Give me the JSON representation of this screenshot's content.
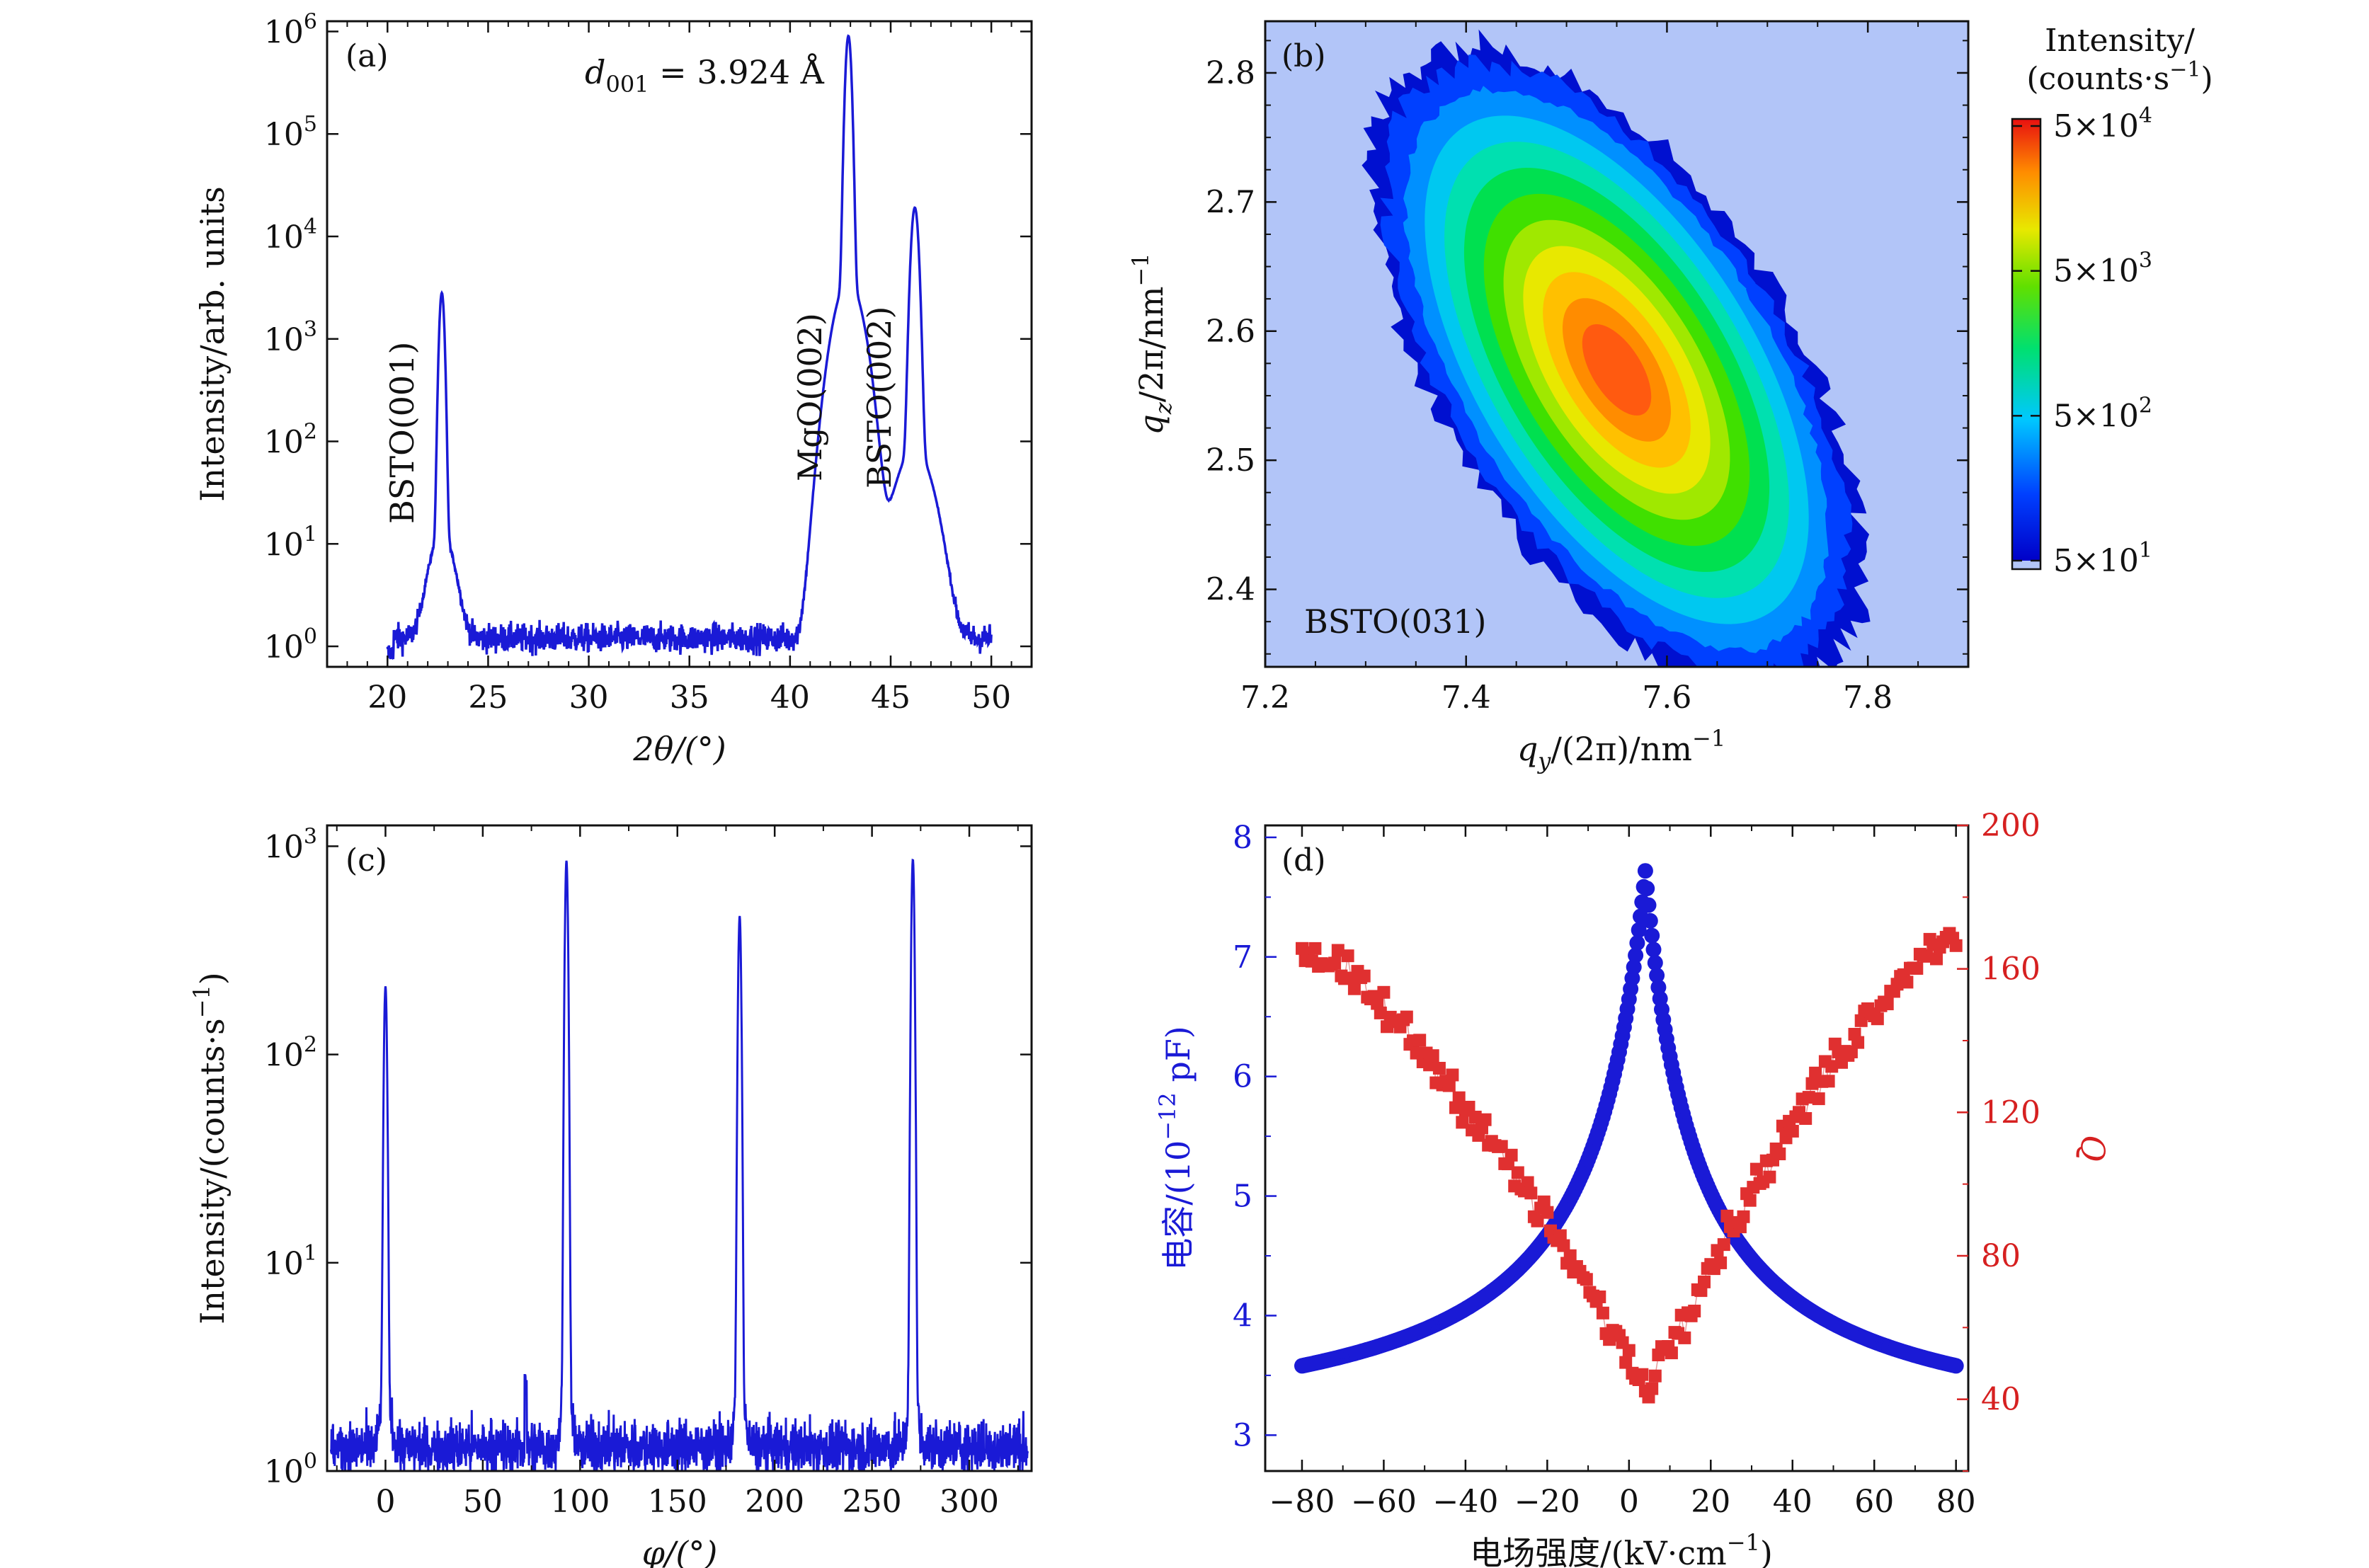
{
  "chart_data": [
    {
      "panel": "(a)",
      "type": "line",
      "xlabel": "2θ/(°)",
      "ylabel": "Intensity/arb. units",
      "xlim": [
        17,
        52
      ],
      "ylim_log10": [
        -0.2,
        6.1
      ],
      "yscale": "log",
      "x_ticks": [
        "20",
        "25",
        "30",
        "35",
        "40",
        "45",
        "50"
      ],
      "y_ticks": [
        "10^0",
        "10^1",
        "10^2",
        "10^3",
        "10^4",
        "10^5",
        "10^6"
      ],
      "color": "#1a1ad6",
      "baseline": 1.2,
      "range": [
        20,
        50
      ],
      "peaks": [
        {
          "x": 22.7,
          "y": 2800,
          "width": 0.14,
          "label": "BSTO(001)"
        },
        {
          "x": 42.9,
          "y": 900000,
          "width": 0.16,
          "label": "MgO(002)"
        },
        {
          "x": 43.9,
          "y": 25,
          "width": 0.2,
          "label": ""
        },
        {
          "x": 46.2,
          "y": 19000,
          "width": 0.2,
          "label": "BSTO(002)"
        }
      ],
      "annotation_main": "d",
      "annotation_sub": "001",
      "annotation_val": " = 3.924 Å",
      "grid": false
    },
    {
      "panel": "(b)",
      "type": "heatmap",
      "xlabel_main": "q",
      "xlabel_sub": "y",
      "xlabel_rest": "/(2π)/nm",
      "xlabel_sup": "−1",
      "ylabel_main": "q",
      "ylabel_sub": "z",
      "ylabel_rest": "/2π/nm",
      "ylabel_sup": "−1",
      "xlim": [
        7.2,
        7.9
      ],
      "ylim": [
        2.34,
        2.84
      ],
      "x_ticks": [
        "7.2",
        "7.4",
        "7.6",
        "7.8"
      ],
      "y_ticks": [
        "2.4",
        "2.5",
        "2.6",
        "2.7",
        "2.8"
      ],
      "center": [
        7.55,
        2.57
      ],
      "peak_intensity": 50000,
      "background_intensity": 50,
      "background_color": "#b2c5f8",
      "annotation": "BSTO(031)",
      "colorbar_title_1": "Intensity/",
      "colorbar_title_2": "(counts·s",
      "colorbar_title_sup": "−1",
      "colorbar_title_end": ")",
      "colorbar_ticks": [
        {
          "mant": "5×10",
          "exp": "4"
        },
        {
          "mant": "5×10",
          "exp": "3"
        },
        {
          "mant": "5×10",
          "exp": "2"
        },
        {
          "mant": "5×10",
          "exp": "1"
        }
      ]
    },
    {
      "panel": "(c)",
      "type": "line",
      "xlabel": "φ/(°)",
      "ylabel": "Intensity/(counts·s",
      "ylabel_sup": "−1",
      "ylabel_end": ")",
      "xlim": [
        -30,
        332
      ],
      "ylim_log10": [
        0,
        3.1
      ],
      "yscale": "log",
      "x_ticks": [
        "0",
        "50",
        "100",
        "150",
        "200",
        "250",
        "300"
      ],
      "y_ticks": [
        "10^0",
        "10^1",
        "10^2",
        "10^3"
      ],
      "color": "#1a1ad6",
      "baseline": 1.3,
      "range": [
        -28,
        330
      ],
      "peaks": [
        {
          "x": 0,
          "y": 210,
          "width": 0.9
        },
        {
          "x": 93,
          "y": 850,
          "width": 0.9
        },
        {
          "x": 182,
          "y": 460,
          "width": 0.9
        },
        {
          "x": 271,
          "y": 860,
          "width": 0.9
        }
      ],
      "grid": false
    },
    {
      "panel": "(d)",
      "type": "scatter",
      "xlabel": "电场强度/(kV·cm",
      "xlabel_sup": "−1",
      "xlabel_end": ")",
      "ylabel_left": "电容/(10",
      "ylabel_left_sup": "−12",
      "ylabel_left_end": " pF)",
      "ylabel_right": "Q",
      "xlim": [
        -89,
        83
      ],
      "ylim_left": [
        2.7,
        8.1
      ],
      "ylim_right": [
        20,
        200
      ],
      "x_ticks": [
        "−80",
        "−60",
        "−40",
        "−20",
        "0",
        "20",
        "40",
        "60",
        "80"
      ],
      "y_ticks_left": [
        "3",
        "4",
        "5",
        "6",
        "7",
        "8"
      ],
      "y_ticks_right": [
        "40",
        "80",
        "120",
        "160",
        "200"
      ],
      "series": [
        {
          "color": "#1a1ad6",
          "x_range": [
            -80,
            80
          ],
          "peak_x": 4,
          "peak_y": 7.72,
          "end_y": 3.58
        },
        {
          "color": "#e03030",
          "x_range": [
            -80,
            80
          ],
          "min_x": 4,
          "min_y": 43,
          "left_y": 165,
          "right_y": 170
        }
      ]
    }
  ]
}
